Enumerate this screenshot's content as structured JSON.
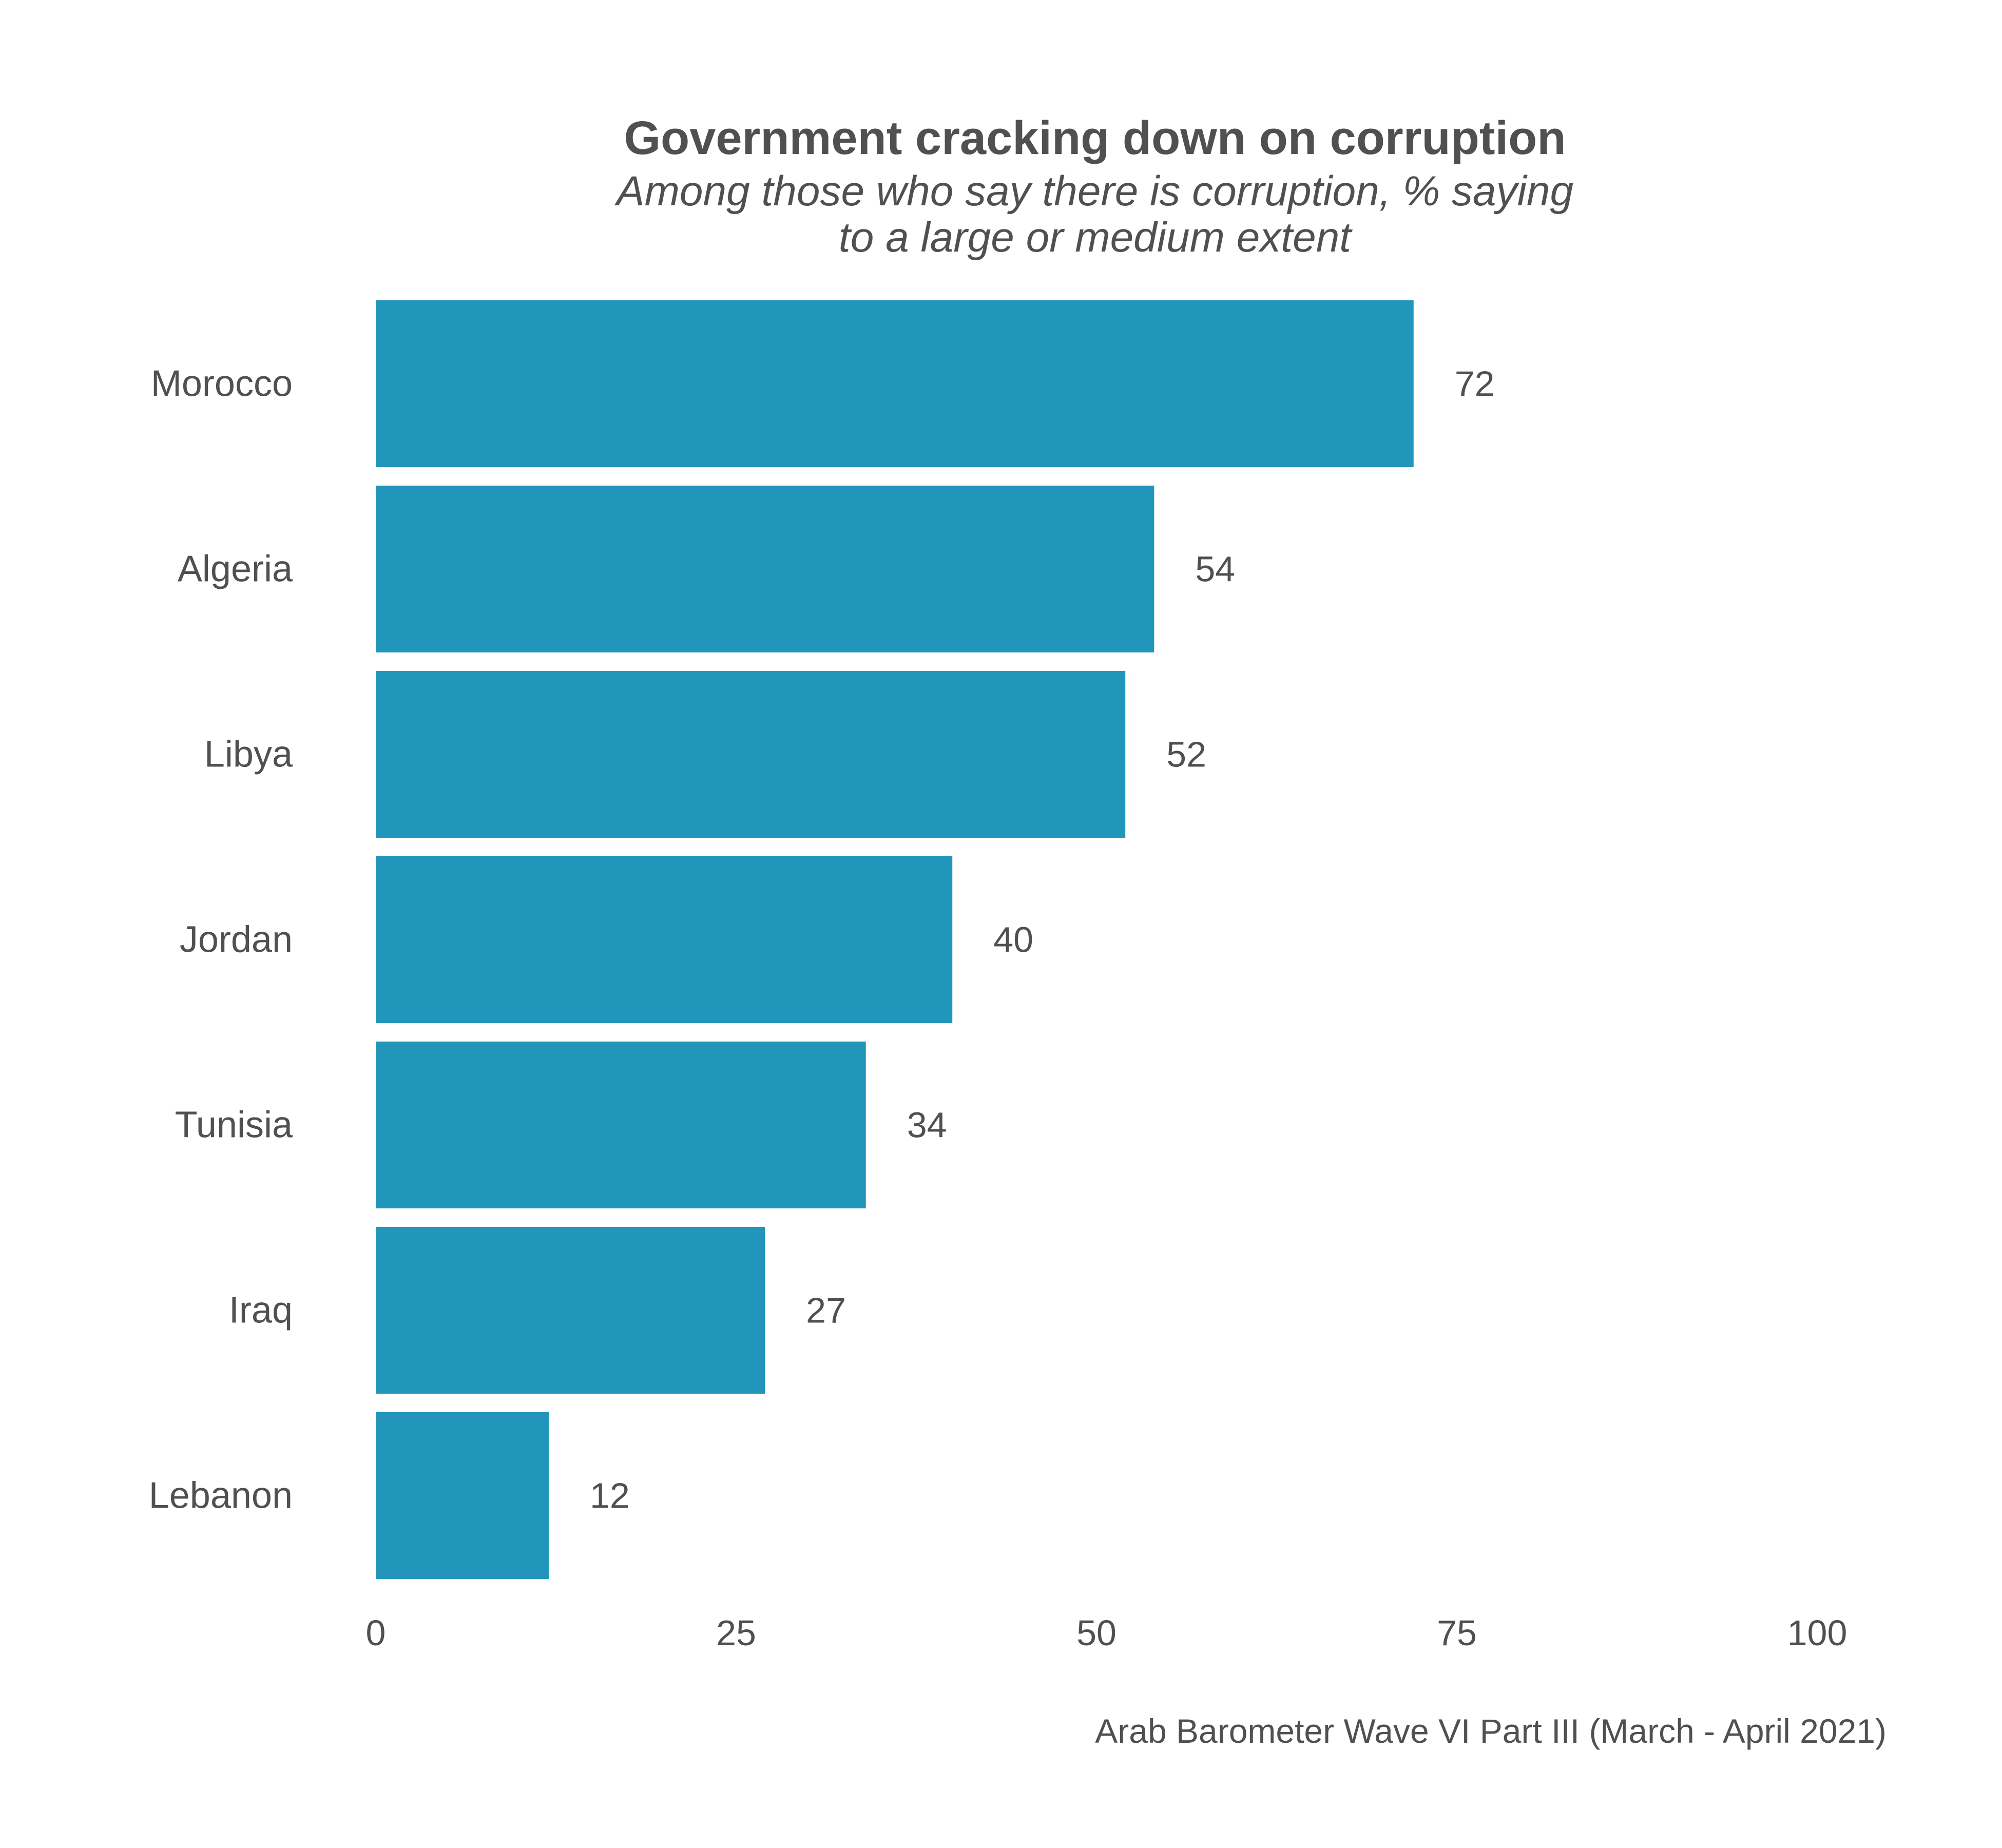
{
  "chart_data": {
    "type": "bar",
    "orientation": "horizontal",
    "title": "Government cracking down on corruption",
    "subtitle_lines": [
      "Among those who say there is corruption, % saying",
      "to a large or medium extent"
    ],
    "categories": [
      "Morocco",
      "Algeria",
      "Libya",
      "Jordan",
      "Tunisia",
      "Iraq",
      "Lebanon"
    ],
    "values": [
      72,
      54,
      52,
      40,
      34,
      27,
      12
    ],
    "xlim": [
      0,
      100
    ],
    "xticks": [
      0,
      25,
      50,
      75,
      100
    ],
    "xlabel": "",
    "ylabel": "",
    "grid": false,
    "bar_color": "#2196BA",
    "caption": "Arab Barometer Wave VI Part III (March - April 2021)"
  }
}
